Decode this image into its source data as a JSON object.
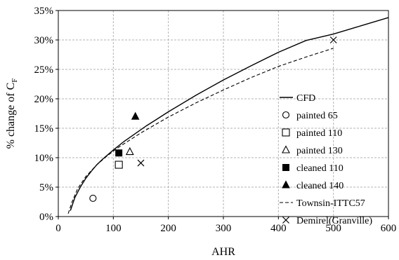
{
  "chart_data": {
    "type": "scatter",
    "xlabel": "AHR",
    "ylabel_main": "% change of C",
    "ylabel_sub": "F",
    "xlim": [
      0,
      600
    ],
    "ylim": [
      0,
      35
    ],
    "x_ticks": [
      0,
      100,
      200,
      300,
      400,
      500,
      600
    ],
    "y_ticks": [
      0,
      5,
      10,
      15,
      20,
      25,
      30,
      35
    ],
    "x_tick_labels": [
      "0",
      "100",
      "200",
      "300",
      "400",
      "500",
      "600"
    ],
    "y_tick_labels": [
      "0%",
      "5%",
      "10%",
      "15%",
      "20%",
      "25%",
      "30%",
      "35%"
    ],
    "grid": "dashed gray",
    "legend_position": "right",
    "series": [
      {
        "name": "CFD",
        "kind": "line",
        "style": "solid",
        "x": [
          22,
          30,
          40,
          50,
          60,
          70,
          80,
          90,
          100,
          120,
          140,
          160,
          180,
          200,
          250,
          300,
          350,
          400,
          450,
          500,
          550,
          600
        ],
        "y": [
          1.0,
          3.2,
          5.0,
          6.5,
          7.7,
          8.8,
          9.7,
          10.5,
          11.3,
          12.8,
          14.1,
          15.4,
          16.6,
          17.8,
          20.6,
          23.2,
          25.6,
          27.9,
          29.9,
          31.0,
          32.4,
          33.8
        ]
      },
      {
        "name": "painted 65",
        "kind": "scatter",
        "marker": "circle-open",
        "x": [
          63
        ],
        "y": [
          3.1
        ]
      },
      {
        "name": "painted 110",
        "kind": "scatter",
        "marker": "square-open",
        "x": [
          110
        ],
        "y": [
          8.8
        ]
      },
      {
        "name": "painted 130",
        "kind": "scatter",
        "marker": "triangle-open",
        "x": [
          130
        ],
        "y": [
          11.0
        ]
      },
      {
        "name": "cleaned 110",
        "kind": "scatter",
        "marker": "square-filled",
        "x": [
          110
        ],
        "y": [
          10.8
        ]
      },
      {
        "name": "cleaned 140",
        "kind": "scatter",
        "marker": "triangle-filled",
        "x": [
          140
        ],
        "y": [
          17.0
        ]
      },
      {
        "name": "Townsin-ITTC57",
        "kind": "line",
        "style": "dashed",
        "x": [
          18,
          25,
          35,
          50,
          70,
          90,
          110,
          130,
          150,
          200,
          250,
          300,
          350,
          400,
          450,
          500
        ],
        "y": [
          0.5,
          2.5,
          4.7,
          6.8,
          8.8,
          10.4,
          11.8,
          13.0,
          14.2,
          16.9,
          19.3,
          21.5,
          23.6,
          25.5,
          27.1,
          28.6
        ]
      },
      {
        "name": "Demirel(Granville)",
        "kind": "scatter",
        "marker": "x",
        "x": [
          150,
          500
        ],
        "y": [
          9.1,
          30.0
        ]
      }
    ]
  }
}
